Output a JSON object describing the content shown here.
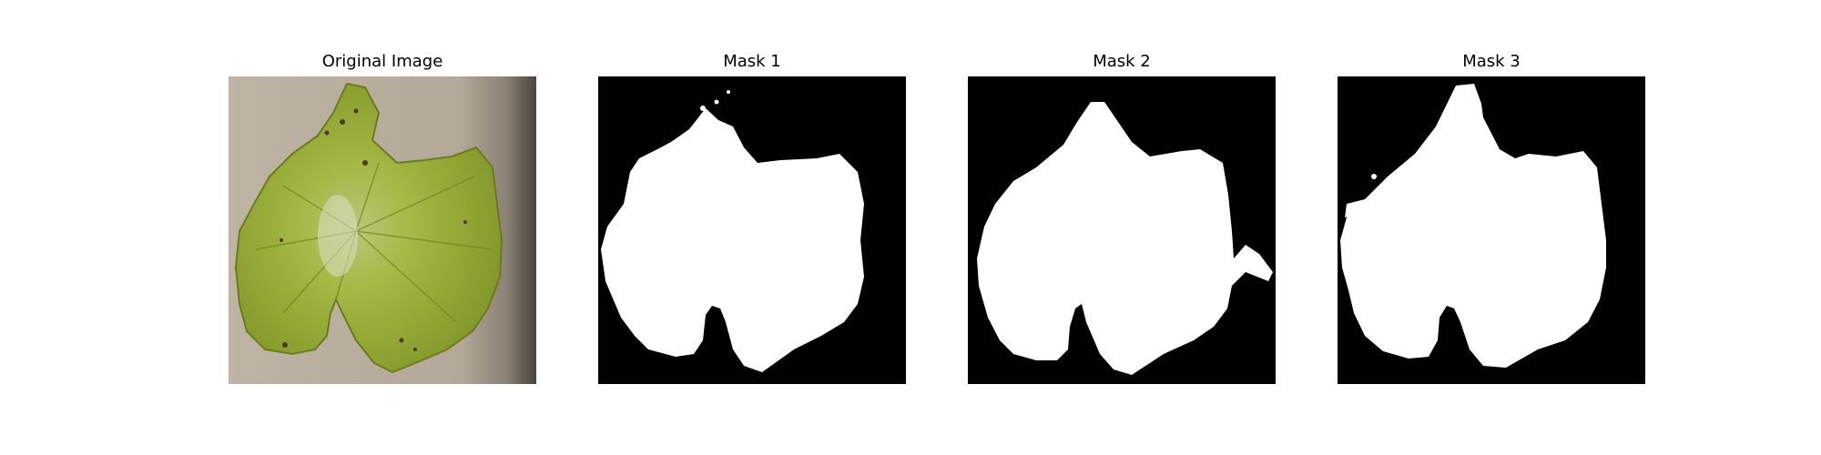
{
  "figure": {
    "panels": [
      {
        "title": "Original Image",
        "kind": "photo",
        "icon": "leaf-photo"
      },
      {
        "title": "Mask 1",
        "kind": "mask",
        "icon": "leaf-mask"
      },
      {
        "title": "Mask 2",
        "kind": "mask",
        "icon": "leaf-mask"
      },
      {
        "title": "Mask 3",
        "kind": "mask",
        "icon": "leaf-mask"
      }
    ],
    "colors": {
      "mask_background": "#000000",
      "mask_foreground": "#ffffff",
      "photo_background": "#b8aa9a",
      "leaf_green": "#9fb43a",
      "leaf_dark": "#6f8a22"
    }
  }
}
